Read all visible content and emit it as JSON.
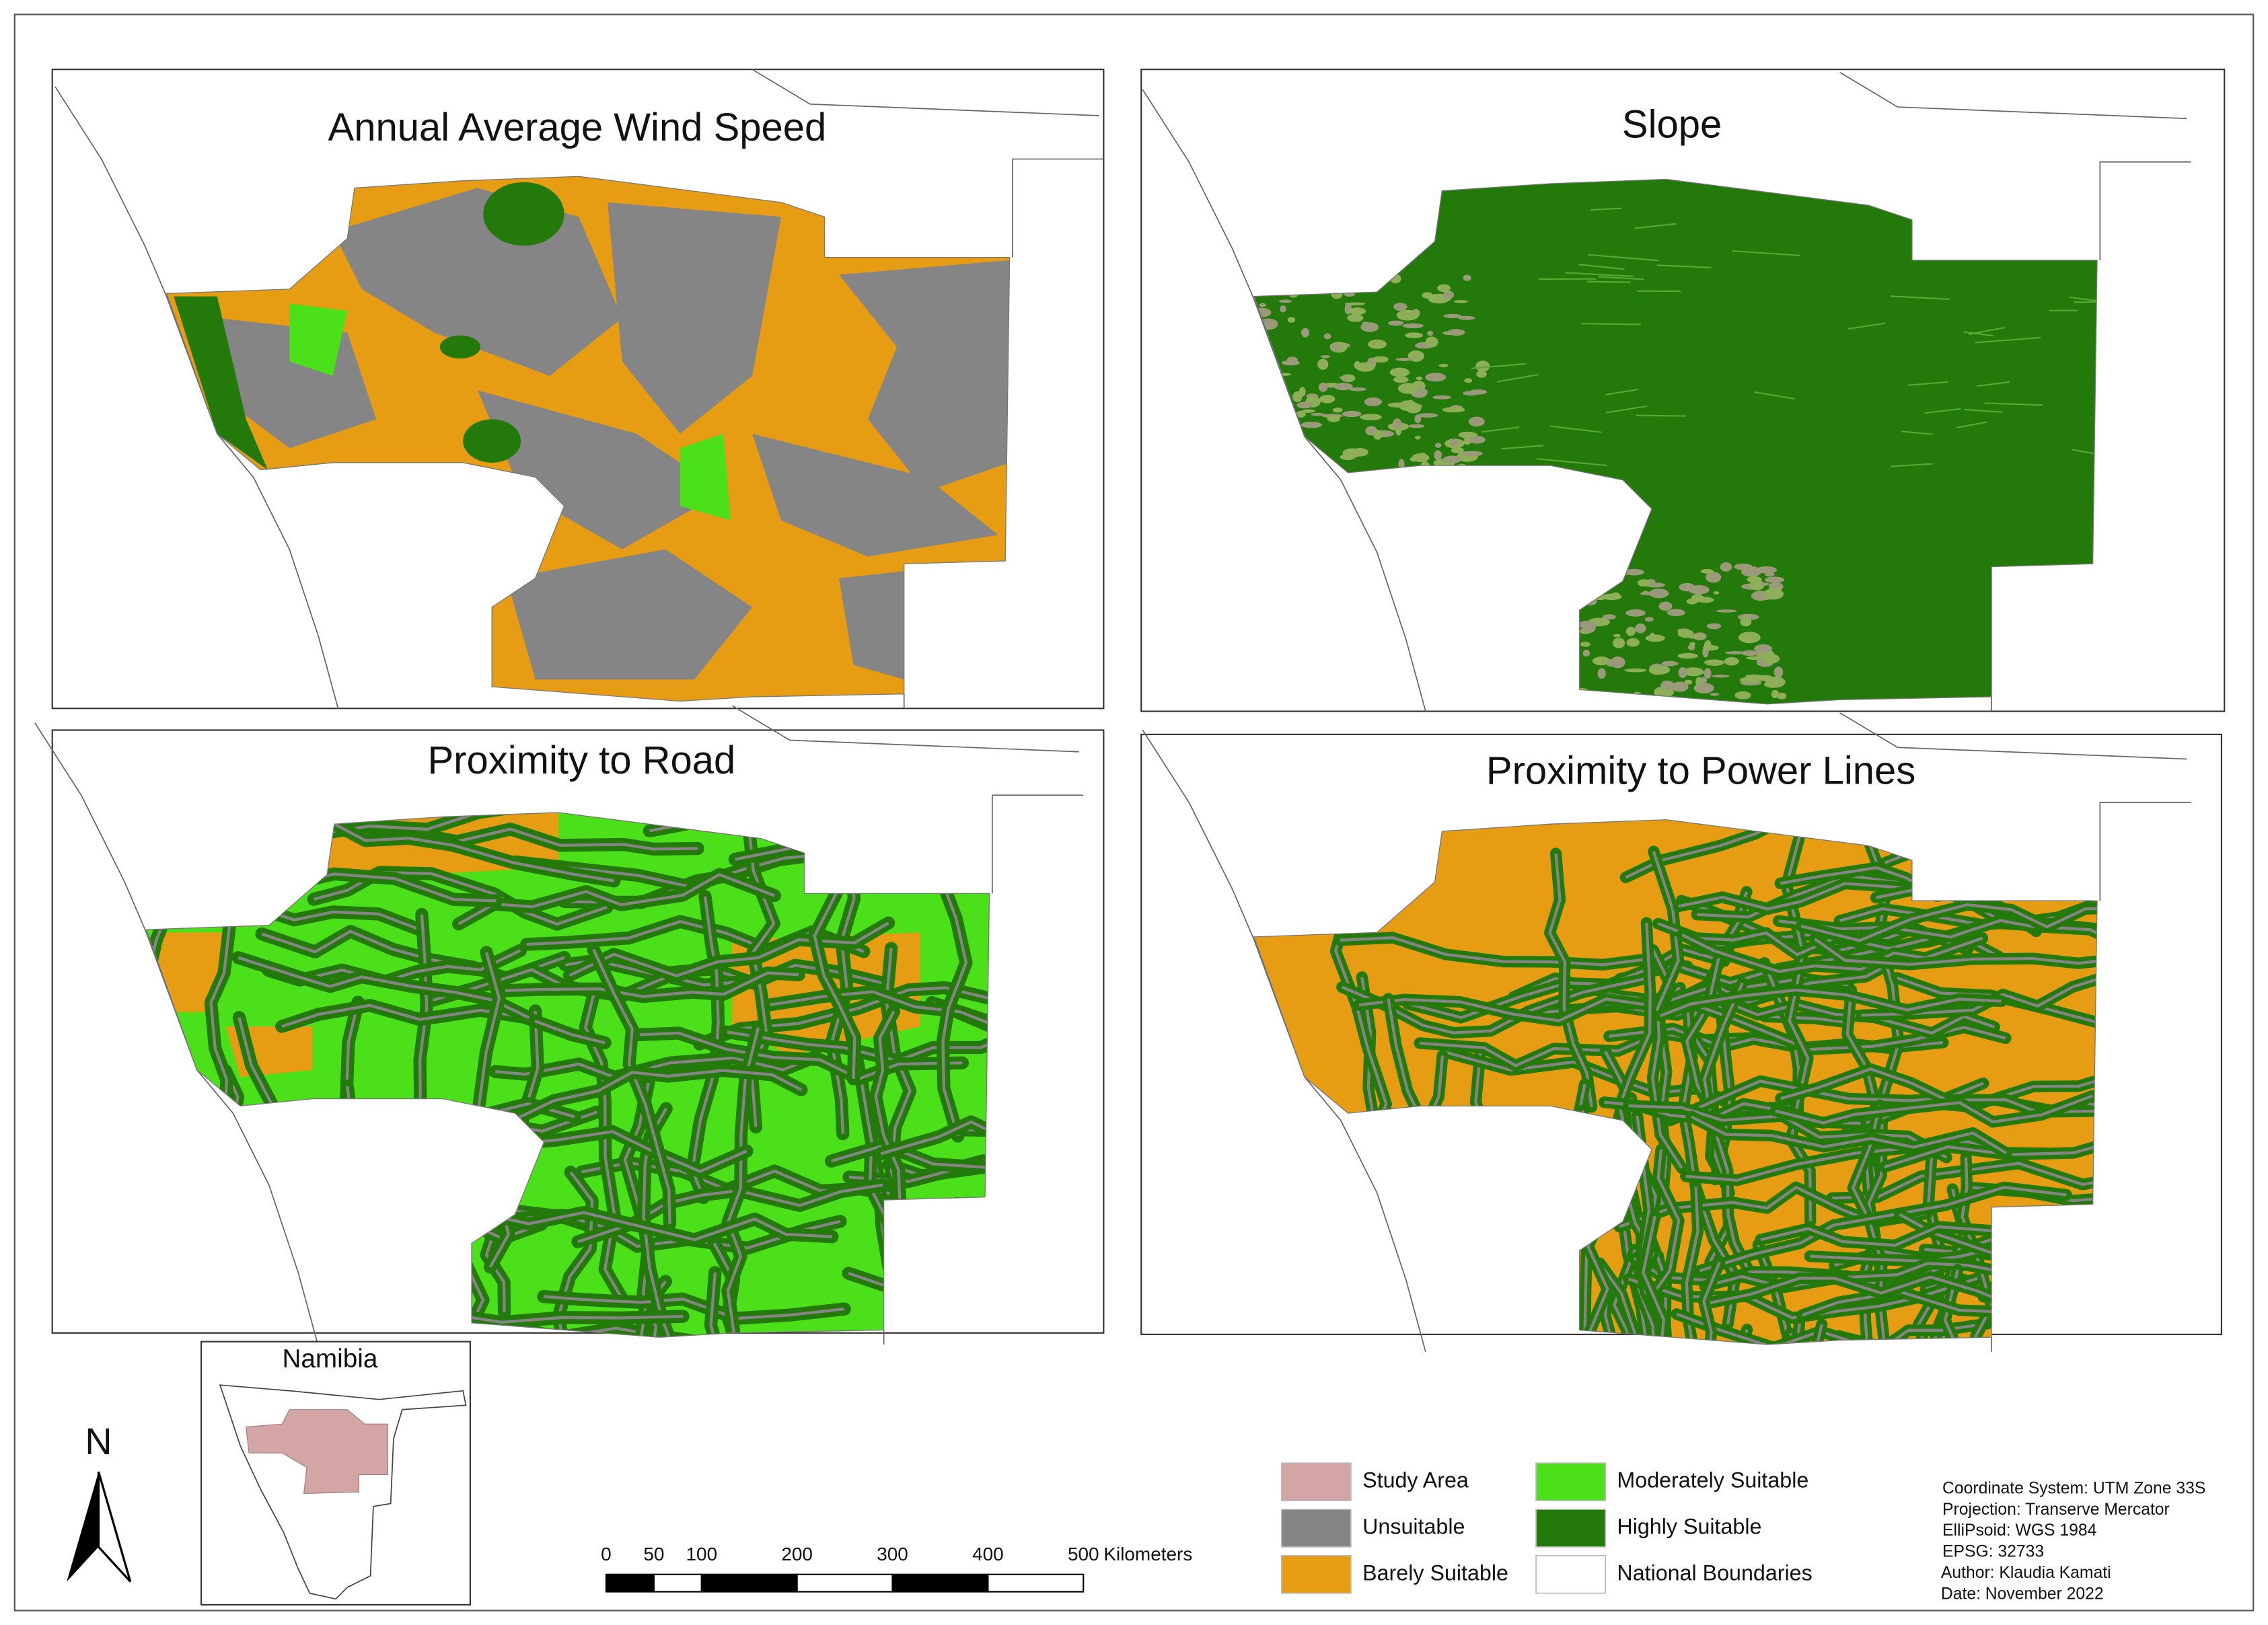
{
  "panels": [
    {
      "title": "Annual Average Wind Speed"
    },
    {
      "title": "Slope"
    },
    {
      "title": "Proximity to Road"
    },
    {
      "title": "Proximity to Power Lines"
    }
  ],
  "inset": {
    "title": "Namibia"
  },
  "north_arrow": {
    "label": "N"
  },
  "scale_bar": {
    "ticks": [
      0,
      50,
      100,
      200,
      300,
      400,
      500
    ],
    "unit": "Kilometers"
  },
  "legend": [
    {
      "label": "Study Area",
      "color": "#d4a5a5"
    },
    {
      "label": "Unsuitable",
      "color": "#858585"
    },
    {
      "label": "Barely Suitable",
      "color": "#e69c13"
    },
    {
      "label": "Moderately Suitable",
      "color": "#4be01a"
    },
    {
      "label": "Highly Suitable",
      "color": "#237a0a"
    },
    {
      "label": "National Boundaries",
      "color": "#ffffff"
    }
  ],
  "info": [
    "Coordinate System: UTM Zone 33S",
    "Projection: Transerve Mercator",
    "ElliPsoid: WGS 1984",
    "EPSG: 32733",
    "Author: Klaudia Kamati",
    "Date: November 2022"
  ]
}
